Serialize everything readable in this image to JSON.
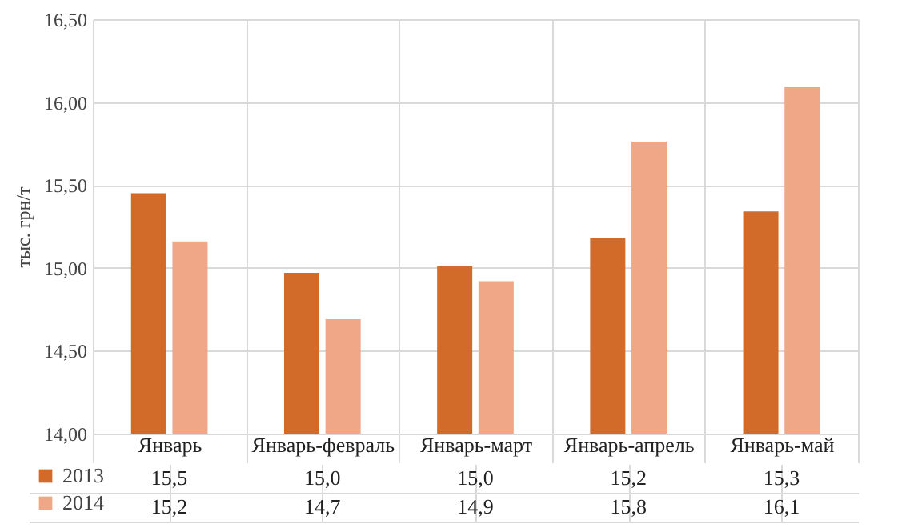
{
  "chart_data": {
    "type": "bar",
    "ylabel": "тыс. грн/т",
    "categories": [
      "Январь",
      "Январь-февраль",
      "Январь-март",
      "Январь-апрель",
      "Январь-май"
    ],
    "series": [
      {
        "name": "2013",
        "color": "#d26b2a",
        "values": [
          15.45,
          14.97,
          15.01,
          15.18,
          15.34
        ],
        "value_labels": [
          "15,5",
          "15,0",
          "15,0",
          "15,2",
          "15,3"
        ]
      },
      {
        "name": "2014",
        "color": "#f0a788",
        "values": [
          15.16,
          14.69,
          14.92,
          15.76,
          16.09
        ],
        "value_labels": [
          "15,2",
          "14,7",
          "14,9",
          "15,8",
          "16,1"
        ]
      }
    ],
    "ylim": [
      14,
      16.5
    ],
    "yticks": [
      {
        "value": 14,
        "label": "14,00"
      },
      {
        "value": 14.5,
        "label": "14,50"
      },
      {
        "value": 15,
        "label": "15,00"
      },
      {
        "value": 15.5,
        "label": "15,50"
      },
      {
        "value": 16,
        "label": "16,00"
      },
      {
        "value": 16.5,
        "label": "16,50"
      }
    ],
    "grid": "y",
    "legend": "bottom left"
  }
}
